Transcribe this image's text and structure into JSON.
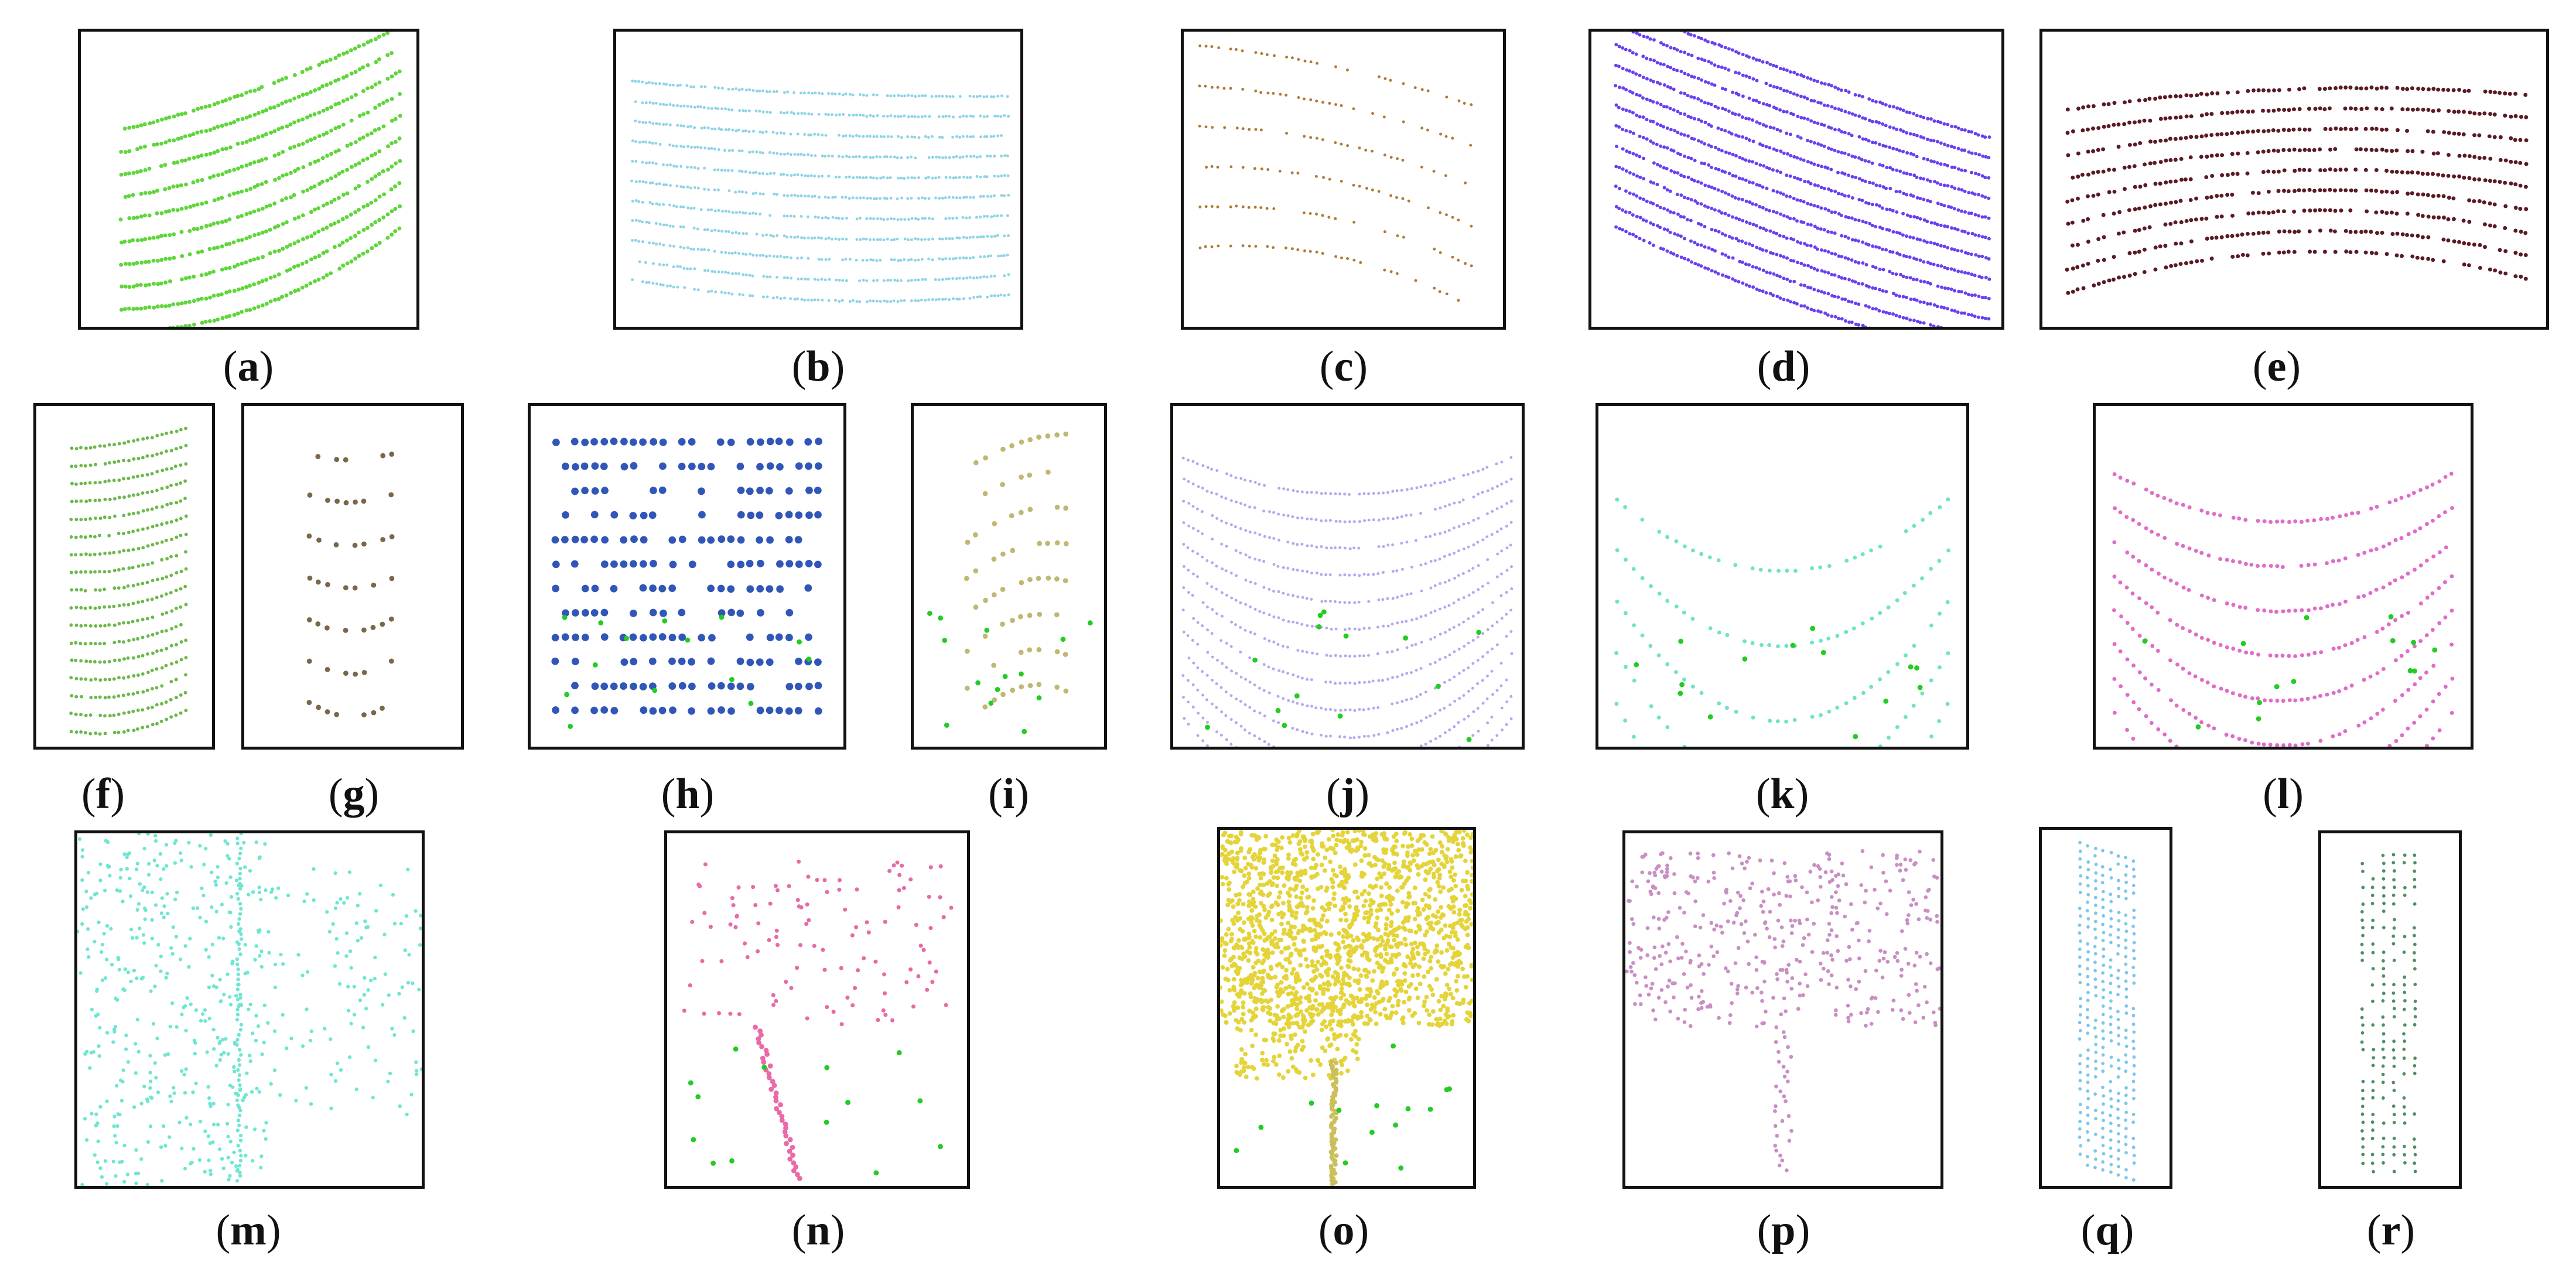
{
  "panels": [
    {
      "id": "a",
      "label": "a",
      "color": "#5fd63a"
    },
    {
      "id": "b",
      "label": "b",
      "color": "#8fd3e6"
    },
    {
      "id": "c",
      "label": "c",
      "color": "#b07a36"
    },
    {
      "id": "d",
      "label": "d",
      "color": "#6a3ff0"
    },
    {
      "id": "e",
      "label": "e",
      "color": "#5a1a24"
    },
    {
      "id": "f",
      "label": "f",
      "color": "#6cb84a"
    },
    {
      "id": "g",
      "label": "g",
      "color": "#7a6748"
    },
    {
      "id": "h",
      "label": "h",
      "color": "#3056b8"
    },
    {
      "id": "i",
      "label": "i",
      "color": "#c0b872"
    },
    {
      "id": "j",
      "label": "j",
      "color": "#b9a6ee"
    },
    {
      "id": "k",
      "label": "k",
      "color": "#6fe3c6"
    },
    {
      "id": "l",
      "label": "l",
      "color": "#e06cc8"
    },
    {
      "id": "m",
      "label": "m",
      "color": "#6ee6d2"
    },
    {
      "id": "n",
      "label": "n",
      "color": "#e86aa8"
    },
    {
      "id": "o",
      "label": "o",
      "color": "#e4d43a"
    },
    {
      "id": "p",
      "label": "p",
      "color": "#c98ec4"
    },
    {
      "id": "q",
      "label": "q",
      "color": "#7cc7ec"
    },
    {
      "id": "r",
      "label": "r",
      "color": "#4f8f60"
    }
  ],
  "accent_color": "#22cc22"
}
